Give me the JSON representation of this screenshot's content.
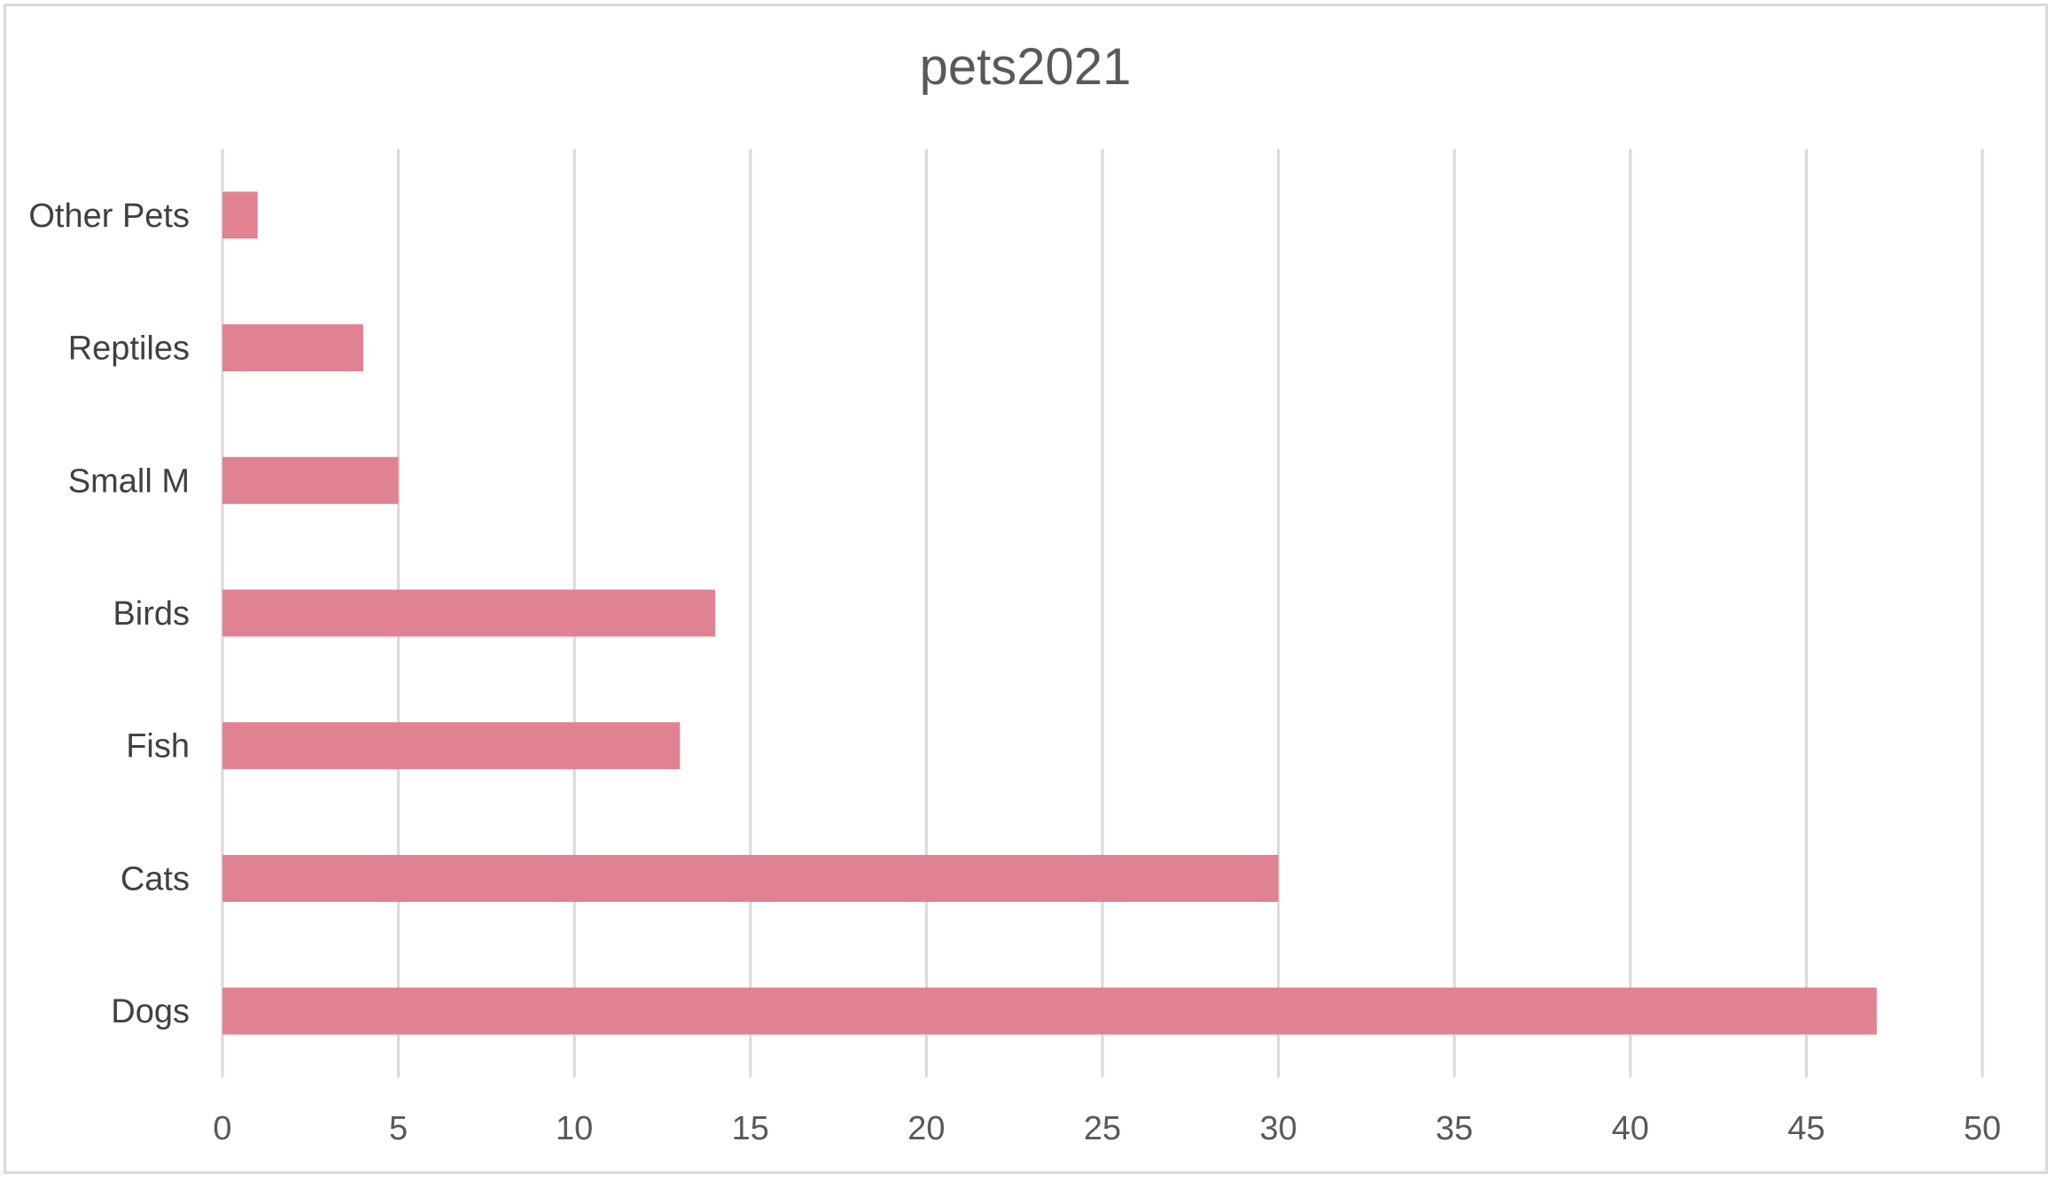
{
  "chart_data": {
    "type": "bar",
    "orientation": "horizontal",
    "title": "pets2021",
    "categories": [
      "Dogs",
      "Cats",
      "Fish",
      "Birds",
      "Small M",
      "Reptiles",
      "Other Pets"
    ],
    "values": [
      47,
      30,
      13,
      14,
      5,
      4,
      1
    ],
    "xlabel": "",
    "ylabel": "",
    "xlim": [
      0,
      50
    ],
    "x_ticks": [
      "0",
      "5",
      "10",
      "15",
      "20",
      "25",
      "30",
      "35",
      "40",
      "45",
      "50"
    ],
    "grid": true,
    "legend": "none",
    "colors": {
      "bar": "#e08292",
      "grid": "#d9d9d9",
      "text": "#595959",
      "border": "#d9d9d9"
    }
  }
}
